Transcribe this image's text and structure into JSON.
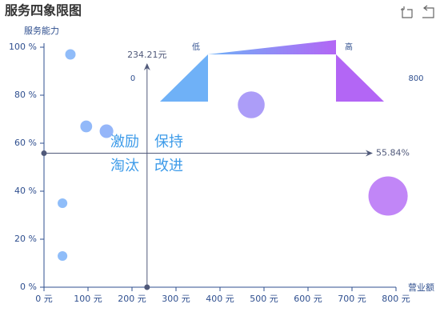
{
  "chart_data": {
    "type": "scatter",
    "title": "服务四象限图",
    "x_label": "营业额",
    "y_label": "服务能力",
    "series": [
      {
        "x": [
          60,
          96,
          142,
          42,
          42,
          471,
          782
        ],
        "values": [
          97,
          67,
          65,
          35,
          13,
          76,
          38
        ]
      }
    ],
    "xlim": [
      0,
      800
    ],
    "xticks": [
      {
        "value": 0,
        "label": "0 元"
      },
      {
        "value": 100,
        "label": "100 元"
      },
      {
        "value": 200,
        "label": "200 元"
      },
      {
        "value": 300,
        "label": "300 元"
      },
      {
        "value": 400,
        "label": "400 元"
      },
      {
        "value": 500,
        "label": "500 元"
      },
      {
        "value": 600,
        "label": "600 元"
      },
      {
        "value": 700,
        "label": "700 元"
      },
      {
        "value": 800,
        "label": "800 元"
      }
    ],
    "ylim": [
      0,
      100
    ],
    "yticks": [
      {
        "value": 0,
        "label": "0 %"
      },
      {
        "value": 20,
        "label": "20 %"
      },
      {
        "value": 40,
        "label": "40 %"
      },
      {
        "value": 60,
        "label": "60 %"
      },
      {
        "value": 80,
        "label": "80 %"
      },
      {
        "value": 100,
        "label": "100 %"
      }
    ],
    "mark_lines": {
      "x": {
        "value": 234.21,
        "label": "234.21元"
      },
      "y": {
        "value": 55.84,
        "label": "55.84%"
      }
    },
    "quadrants": [
      "激励",
      "保持",
      "淘汰",
      "改进"
    ],
    "visual_map": {
      "min": 0,
      "max": 800,
      "low_label": "低",
      "high_label": "高",
      "colors": [
        "#6fb1f7",
        "#b366f5"
      ]
    }
  }
}
